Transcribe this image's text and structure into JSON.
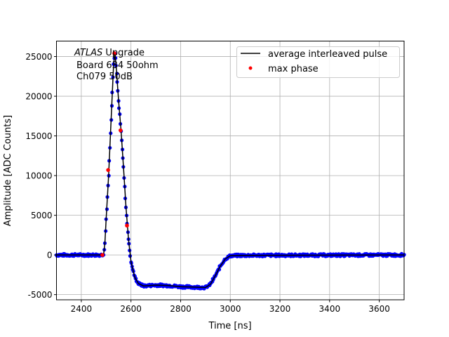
{
  "chart_data": {
    "type": "line",
    "title": "",
    "xlabel": "Time [ns]",
    "ylabel": "Amplitude [ADC Counts]",
    "xlim": [
      2300,
      3700
    ],
    "ylim": [
      -5650,
      26950
    ],
    "xticks": [
      2400,
      2600,
      2800,
      3000,
      3200,
      3400,
      3600
    ],
    "yticks": [
      -5000,
      0,
      5000,
      10000,
      15000,
      20000,
      25000
    ],
    "grid": true,
    "legend_position": "top-right",
    "annotation": {
      "line1_italic": "ATLAS",
      "line1_rest": " Upgrade",
      "line2": "Board 634 50ohm",
      "line3": "Ch079 50dB"
    },
    "series": [
      {
        "name": "average interleaved pulse",
        "kind": "line",
        "color": "#000000",
        "x": [
          2300,
          2480,
          2490,
          2495,
          2500,
          2510,
          2520,
          2530,
          2535,
          2540,
          2550,
          2560,
          2570,
          2580,
          2590,
          2600,
          2615,
          2630,
          2650,
          2700,
          2750,
          2800,
          2850,
          2900,
          2920,
          2940,
          2960,
          2980,
          3000,
          3050,
          3700
        ],
        "y": [
          0,
          0,
          100,
          1500,
          4500,
          10000,
          17000,
          24000,
          25400,
          24000,
          19500,
          15700,
          11000,
          6000,
          2000,
          -800,
          -2800,
          -3600,
          -3900,
          -3800,
          -3850,
          -4000,
          -4050,
          -4100,
          -3700,
          -2600,
          -1400,
          -500,
          -100,
          -50,
          0
        ]
      },
      {
        "name": "",
        "kind": "scatter-samples",
        "color": "#0000ff",
        "description_of_values": "samples follow average pulse"
      },
      {
        "name": "max phase",
        "kind": "scatter",
        "color": "#ff0000",
        "x": [
          2485,
          2508,
          2533,
          2558,
          2584
        ],
        "y": [
          0,
          10700,
          25400,
          15700,
          3700
        ]
      }
    ]
  }
}
